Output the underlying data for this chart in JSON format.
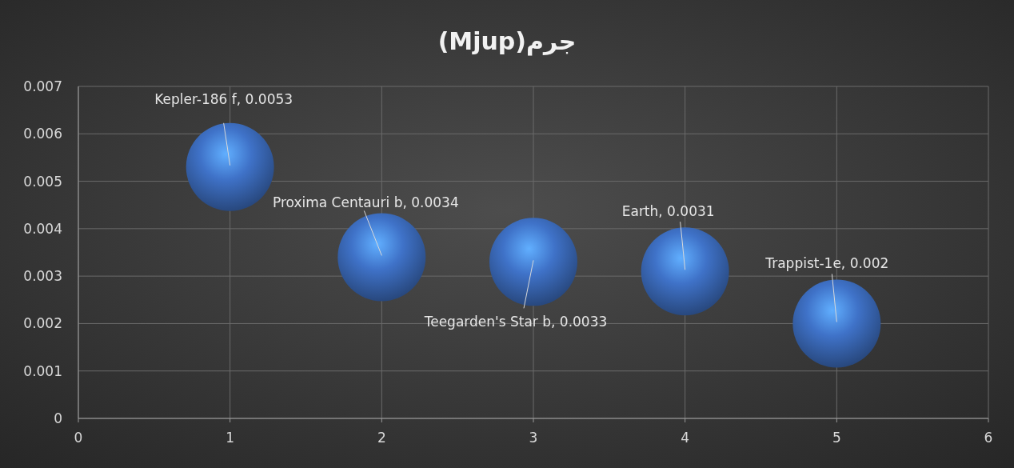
{
  "chart_data": {
    "type": "bubble",
    "title": "(Mjup)جرم",
    "x": [
      1,
      2,
      3,
      4,
      5
    ],
    "values": [
      0.0053,
      0.0034,
      0.0033,
      0.0031,
      0.002
    ],
    "sizes": [
      1,
      1,
      1,
      1,
      1
    ],
    "color": "#3f72c8",
    "value_labels": [
      "Kepler-186 f, 0.0053",
      "Proxima Centauri b, 0.0034",
      "Teegarden's Star b, 0.0033",
      "Earth, 0.0031",
      "Trappist-1e, 0.002"
    ],
    "xlim": [
      0,
      6
    ],
    "xticks": [
      0,
      1,
      2,
      3,
      4,
      5,
      6
    ],
    "ylim": [
      0,
      0.007
    ],
    "yticks": [
      0,
      0.001,
      0.002,
      0.003,
      0.004,
      0.005,
      0.006,
      0.007
    ],
    "grid": true
  }
}
